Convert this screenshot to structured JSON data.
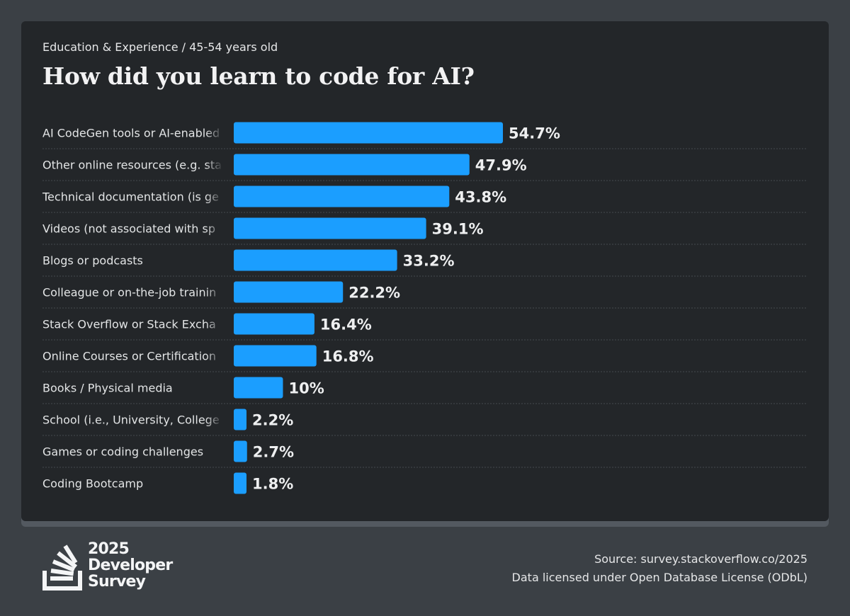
{
  "header": {
    "subtitle": "Education & Experience / 45-54 years old",
    "title": "How did you learn to code for AI?"
  },
  "colors": {
    "bar": "#1b9eff",
    "background": "#3b4045",
    "card": "#232629"
  },
  "chart_data": {
    "type": "bar",
    "orientation": "horizontal",
    "title": "How did you learn to code for AI?",
    "subtitle": "Education & Experience / 45-54 years old",
    "xlabel": "",
    "ylabel": "",
    "grid": false,
    "value_suffix": "%",
    "categories": [
      "AI CodeGen tools or AI-enabled apps",
      "Other online resources (e.g. standard search, forum, online community)",
      "Technical documentation (is generated for/by the tool or system)",
      "Videos (not associated with specific online courses or certification)",
      "Blogs or podcasts",
      "Colleague or on-the-job training",
      "Stack Overflow or Stack Exchange",
      "Online Courses or Certification",
      "Books / Physical media",
      "School (i.e., University, College, etc)",
      "Games or coding challenges",
      "Coding Bootcamp"
    ],
    "visible_labels": [
      "AI CodeGen tools or AI-enabled",
      "Other online resources (e.g. sta",
      "Technical documentation (is ge",
      "Videos (not associated with sp",
      "Blogs or podcasts",
      "Colleague or on-the-job trainin",
      "Stack Overflow or Stack Excha",
      "Online Courses or Certification",
      "Books / Physical media",
      "School (i.e., University, College",
      "Games or coding challenges",
      "Coding Bootcamp"
    ],
    "values": [
      54.7,
      47.9,
      43.8,
      39.1,
      33.2,
      22.2,
      16.4,
      16.8,
      10,
      2.2,
      2.7,
      1.8
    ],
    "value_labels": [
      "54.7%",
      "47.9%",
      "43.8%",
      "39.1%",
      "33.2%",
      "22.2%",
      "16.4%",
      "16.8%",
      "10%",
      "2.2%",
      "2.7%",
      "1.8%"
    ],
    "xlim": [
      0,
      54.7
    ]
  },
  "footer": {
    "logo_lines": [
      "2025",
      "Developer",
      "Survey"
    ],
    "source": "Source: survey.stackoverflow.co/2025",
    "license": "Data licensed under Open Database License (ODbL)"
  }
}
